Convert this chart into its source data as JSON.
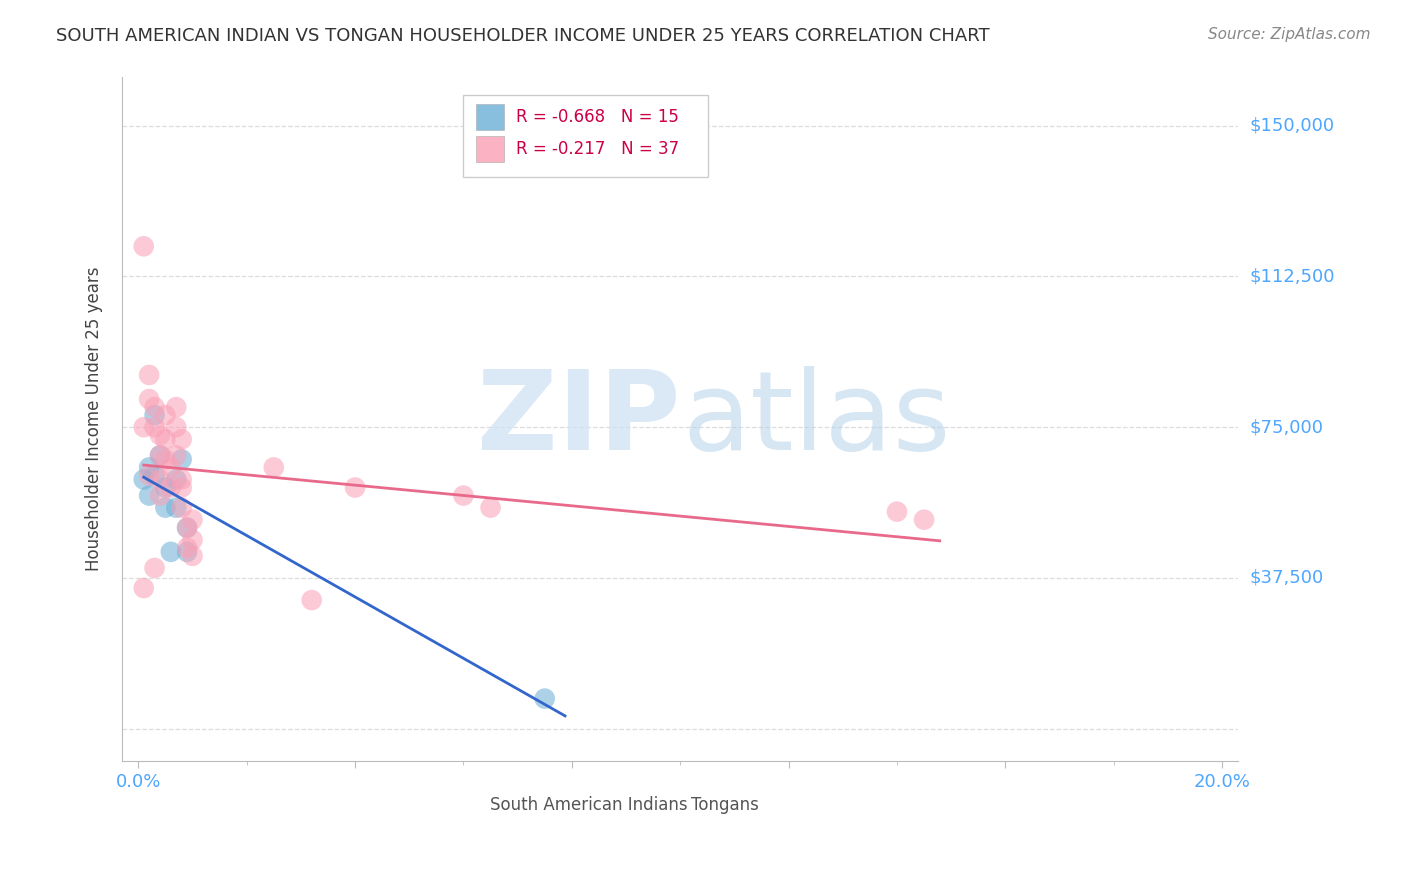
{
  "title": "SOUTH AMERICAN INDIAN VS TONGAN HOUSEHOLDER INCOME UNDER 25 YEARS CORRELATION CHART",
  "source": "Source: ZipAtlas.com",
  "ylabel": "Householder Income Under 25 years",
  "tick_color": "#4da6ff",
  "legend1_label": "South American Indians",
  "legend2_label": "Tongans",
  "blue_color": "#6baed6",
  "pink_color": "#fa9fb5",
  "blue_line_color": "#3366cc",
  "pink_line_color": "#e8698a",
  "R_blue": -0.668,
  "N_blue": 15,
  "R_pink": -0.217,
  "N_pink": 37,
  "blue_scatter_x": [
    0.001,
    0.002,
    0.002,
    0.003,
    0.003,
    0.004,
    0.005,
    0.005,
    0.006,
    0.007,
    0.007,
    0.008,
    0.009,
    0.009,
    0.075
  ],
  "blue_scatter_y": [
    62000,
    65000,
    58000,
    78000,
    63000,
    68000,
    60000,
    55000,
    44000,
    62000,
    55000,
    67000,
    44000,
    50000,
    7500
  ],
  "pink_scatter_x": [
    0.001,
    0.001,
    0.002,
    0.002,
    0.002,
    0.003,
    0.003,
    0.004,
    0.004,
    0.004,
    0.004,
    0.005,
    0.005,
    0.005,
    0.006,
    0.006,
    0.007,
    0.007,
    0.007,
    0.008,
    0.008,
    0.008,
    0.008,
    0.009,
    0.009,
    0.01,
    0.01,
    0.01,
    0.025,
    0.04,
    0.06,
    0.065,
    0.14,
    0.145,
    0.001,
    0.003,
    0.032
  ],
  "pink_scatter_y": [
    120000,
    75000,
    88000,
    82000,
    63000,
    80000,
    75000,
    73000,
    68000,
    62000,
    58000,
    78000,
    72000,
    67000,
    65000,
    60000,
    80000,
    75000,
    68000,
    72000,
    62000,
    60000,
    55000,
    50000,
    45000,
    52000,
    47000,
    43000,
    65000,
    60000,
    58000,
    55000,
    54000,
    52000,
    35000,
    40000,
    32000
  ],
  "background_color": "#ffffff",
  "grid_color": "#dddddd",
  "watermark_zip_color": "#cce0f5",
  "watermark_atlas_color": "#b0cfe8"
}
